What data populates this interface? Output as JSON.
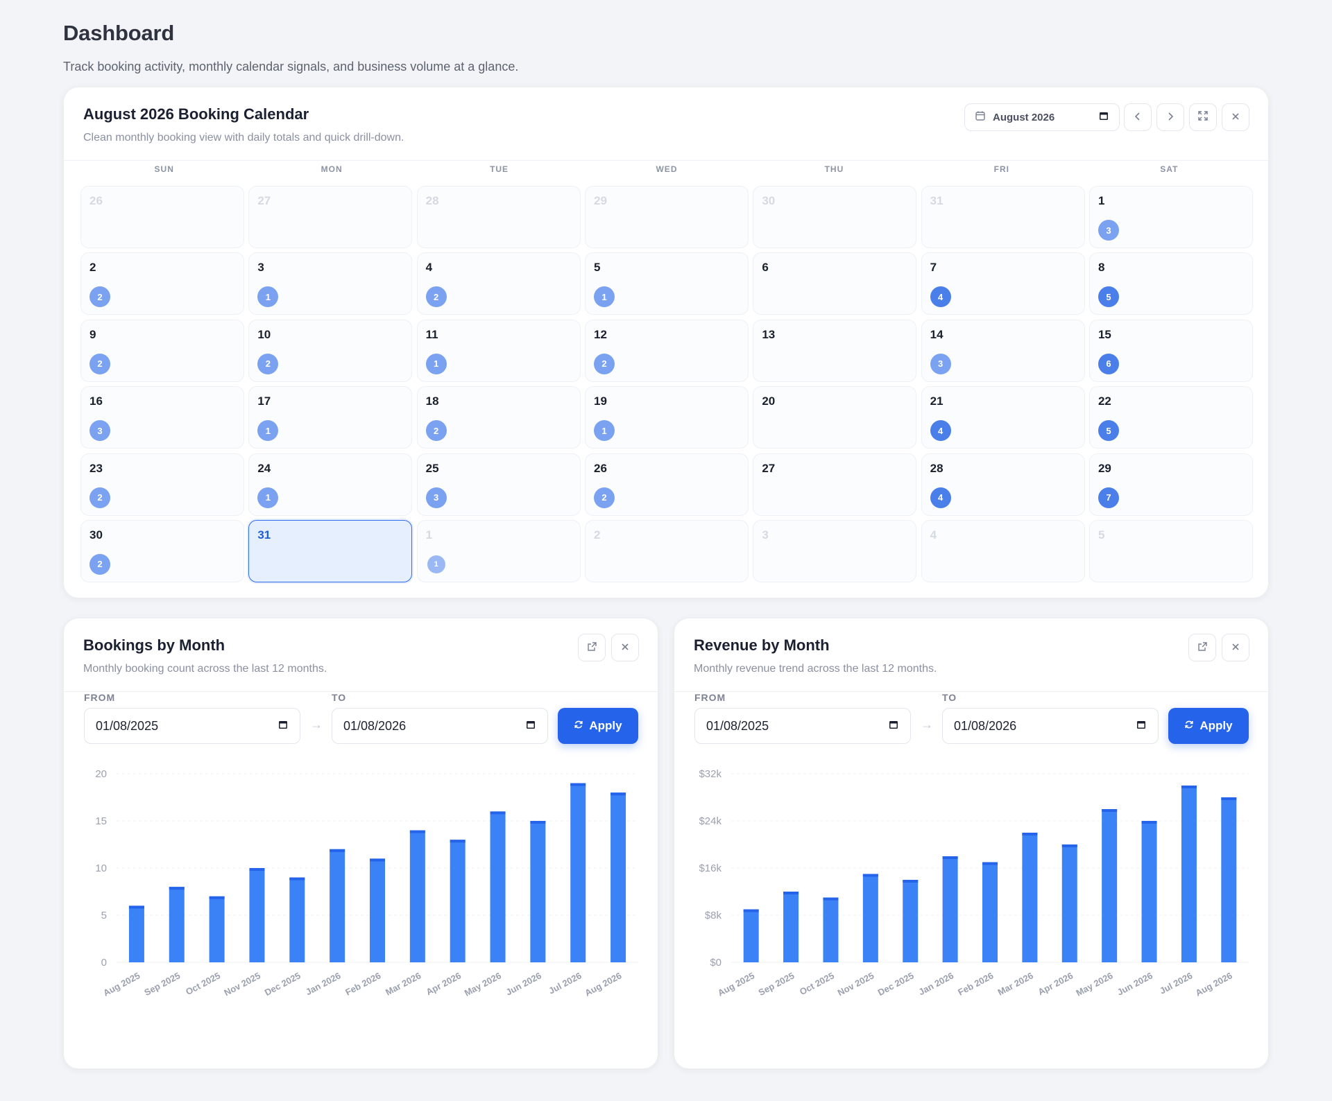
{
  "page": {
    "title": "Dashboard",
    "subtitle": "Track booking activity, monthly calendar signals, and business volume at a glance."
  },
  "calendar": {
    "title": "August 2026 Booking Calendar",
    "subtitle": "Clean monthly booking view with daily totals and quick drill-down.",
    "month_picker_value": "August 2026",
    "weekdays": [
      "SUN",
      "MON",
      "TUE",
      "WED",
      "THU",
      "FRI",
      "SAT"
    ],
    "days": [
      {
        "day": "26",
        "muted": true,
        "count": null
      },
      {
        "day": "27",
        "muted": true,
        "count": null
      },
      {
        "day": "28",
        "muted": true,
        "count": null
      },
      {
        "day": "29",
        "muted": true,
        "count": null
      },
      {
        "day": "30",
        "muted": true,
        "count": null
      },
      {
        "day": "31",
        "muted": true,
        "count": null
      },
      {
        "day": "1",
        "muted": false,
        "count": "3"
      },
      {
        "day": "2",
        "muted": false,
        "count": "2"
      },
      {
        "day": "3",
        "muted": false,
        "count": "1"
      },
      {
        "day": "4",
        "muted": false,
        "count": "2"
      },
      {
        "day": "5",
        "muted": false,
        "count": "1"
      },
      {
        "day": "6",
        "muted": false,
        "count": null
      },
      {
        "day": "7",
        "muted": false,
        "count": "4"
      },
      {
        "day": "8",
        "muted": false,
        "count": "5"
      },
      {
        "day": "9",
        "muted": false,
        "count": "2"
      },
      {
        "day": "10",
        "muted": false,
        "count": "2"
      },
      {
        "day": "11",
        "muted": false,
        "count": "1"
      },
      {
        "day": "12",
        "muted": false,
        "count": "2"
      },
      {
        "day": "13",
        "muted": false,
        "count": null
      },
      {
        "day": "14",
        "muted": false,
        "count": "3"
      },
      {
        "day": "15",
        "muted": false,
        "count": "6"
      },
      {
        "day": "16",
        "muted": false,
        "count": "3"
      },
      {
        "day": "17",
        "muted": false,
        "count": "1"
      },
      {
        "day": "18",
        "muted": false,
        "count": "2"
      },
      {
        "day": "19",
        "muted": false,
        "count": "1"
      },
      {
        "day": "20",
        "muted": false,
        "count": null
      },
      {
        "day": "21",
        "muted": false,
        "count": "4"
      },
      {
        "day": "22",
        "muted": false,
        "count": "5"
      },
      {
        "day": "23",
        "muted": false,
        "count": "2"
      },
      {
        "day": "24",
        "muted": false,
        "count": "1"
      },
      {
        "day": "25",
        "muted": false,
        "count": "3"
      },
      {
        "day": "26",
        "muted": false,
        "count": "2"
      },
      {
        "day": "27",
        "muted": false,
        "count": null
      },
      {
        "day": "28",
        "muted": false,
        "count": "4"
      },
      {
        "day": "29",
        "muted": false,
        "count": "7"
      },
      {
        "day": "30",
        "muted": false,
        "count": "2"
      },
      {
        "day": "31",
        "muted": false,
        "count": null,
        "today": true
      },
      {
        "day": "1",
        "muted": true,
        "count": "1"
      },
      {
        "day": "2",
        "muted": true,
        "count": null
      },
      {
        "day": "3",
        "muted": true,
        "count": null
      },
      {
        "day": "4",
        "muted": true,
        "count": null
      },
      {
        "day": "5",
        "muted": true,
        "count": null
      }
    ]
  },
  "bookings_panel": {
    "title": "Bookings by Month",
    "subtitle": "Monthly booking count across the last 12 months.",
    "from_label": "FROM",
    "to_label": "TO",
    "from_value": "01/08/2025",
    "to_value": "01/08/2026",
    "apply_label": "Apply"
  },
  "revenue_panel": {
    "title": "Revenue by Month",
    "subtitle": "Monthly revenue trend across the last 12 months.",
    "from_label": "FROM",
    "to_label": "TO",
    "from_value": "01/08/2025",
    "to_value": "01/08/2026",
    "apply_label": "Apply"
  },
  "colors": {
    "bar": "#3b82f6",
    "bar_cap": "#2563eb",
    "accent": "#2563eb",
    "badge_light": "#7aa2f0",
    "badge_dark": "#4a7ee8"
  },
  "chart_data": [
    {
      "type": "bar",
      "title": "Bookings by Month",
      "categories": [
        "Aug 2025",
        "Sep 2025",
        "Oct 2025",
        "Nov 2025",
        "Dec 2025",
        "Jan 2026",
        "Feb 2026",
        "Mar 2026",
        "Apr 2026",
        "May 2026",
        "Jun 2026",
        "Jul 2026",
        "Aug 2026"
      ],
      "values": [
        6,
        8,
        7,
        10,
        9,
        12,
        11,
        14,
        13,
        16,
        15,
        19,
        18
      ],
      "ylim": [
        0,
        20
      ],
      "yticks": [
        0,
        5,
        10,
        15,
        20
      ],
      "ytick_labels": [
        "0",
        "5",
        "10",
        "15",
        "20"
      ],
      "grid": true
    },
    {
      "type": "bar",
      "title": "Revenue by Month",
      "categories": [
        "Aug 2025",
        "Sep 2025",
        "Oct 2025",
        "Nov 2025",
        "Dec 2025",
        "Jan 2026",
        "Feb 2026",
        "Mar 2026",
        "Apr 2026",
        "May 2026",
        "Jun 2026",
        "Jul 2026",
        "Aug 2026"
      ],
      "values": [
        9000,
        12000,
        11000,
        15000,
        14000,
        18000,
        17000,
        22000,
        20000,
        26000,
        24000,
        30000,
        28000
      ],
      "ylim": [
        0,
        32000
      ],
      "yticks": [
        0,
        8000,
        16000,
        24000,
        32000
      ],
      "ytick_labels": [
        "$0",
        "$8k",
        "$16k",
        "$24k",
        "$32k"
      ],
      "grid": true
    }
  ]
}
